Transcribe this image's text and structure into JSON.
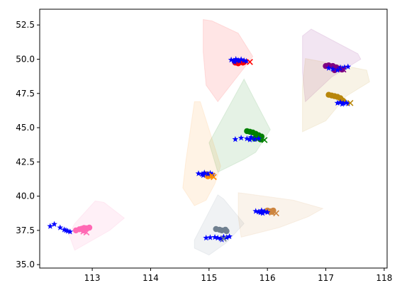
{
  "chart_data": {
    "type": "scatter",
    "title": "",
    "xlabel": "",
    "ylabel": "",
    "xlim": [
      112.1,
      118.05
    ],
    "ylim": [
      34.75,
      53.65
    ],
    "grid": false,
    "legend": "none",
    "x_ticks": [
      113,
      114,
      115,
      116,
      117,
      118
    ],
    "y_ticks": [
      35.0,
      37.5,
      40.0,
      42.5,
      45.0,
      47.5,
      50.0,
      52.5
    ],
    "clusters": [
      {
        "id": "red",
        "color": "#ff0000",
        "hull": [
          [
            114.9,
            52.9
          ],
          [
            115.05,
            52.8
          ],
          [
            115.5,
            51.9
          ],
          [
            115.75,
            50.2
          ],
          [
            115.6,
            49.35
          ],
          [
            115.15,
            46.9
          ],
          [
            114.95,
            48.1
          ],
          [
            114.9,
            50.5
          ]
        ],
        "circles": [
          [
            115.45,
            49.75
          ],
          [
            115.48,
            49.78
          ],
          [
            115.52,
            49.8
          ],
          [
            115.55,
            49.82
          ],
          [
            115.58,
            49.75
          ],
          [
            115.5,
            49.7
          ],
          [
            115.6,
            49.8
          ]
        ],
        "stars": [
          [
            115.38,
            49.95
          ],
          [
            115.42,
            49.88
          ],
          [
            115.46,
            50.0
          ],
          [
            115.5,
            49.92
          ],
          [
            115.55,
            49.98
          ],
          [
            115.6,
            49.9
          ],
          [
            115.64,
            49.85
          ],
          [
            115.44,
            49.8
          ],
          [
            115.52,
            49.86
          ]
        ],
        "x_marks": [
          [
            115.7,
            49.8
          ]
        ]
      },
      {
        "id": "purple",
        "color": "#800080",
        "hull": [
          [
            116.6,
            51.7
          ],
          [
            116.75,
            52.2
          ],
          [
            117.55,
            50.4
          ],
          [
            117.6,
            50.0
          ],
          [
            117.1,
            48.7
          ],
          [
            116.65,
            46.9
          ],
          [
            116.6,
            49.0
          ]
        ],
        "circles": [
          [
            117.0,
            49.5
          ],
          [
            117.05,
            49.55
          ],
          [
            117.12,
            49.5
          ],
          [
            117.18,
            49.4
          ],
          [
            117.22,
            49.3
          ],
          [
            117.28,
            49.25
          ],
          [
            117.15,
            49.2
          ]
        ],
        "stars": [
          [
            117.05,
            49.35
          ],
          [
            117.12,
            49.28
          ],
          [
            117.2,
            49.2
          ],
          [
            117.28,
            49.32
          ],
          [
            117.32,
            49.4
          ],
          [
            117.38,
            49.45
          ],
          [
            117.25,
            49.38
          ]
        ],
        "x_marks": [
          [
            117.3,
            49.25
          ]
        ]
      },
      {
        "id": "olive",
        "color": "#b8860b",
        "hull": [
          [
            116.65,
            50.05
          ],
          [
            117.4,
            49.45
          ],
          [
            117.7,
            49.2
          ],
          [
            117.75,
            48.35
          ],
          [
            117.35,
            47.3
          ],
          [
            117.0,
            45.5
          ],
          [
            116.6,
            44.7
          ],
          [
            116.6,
            48.0
          ]
        ],
        "circles": [
          [
            117.05,
            47.4
          ],
          [
            117.1,
            47.35
          ],
          [
            117.15,
            47.3
          ],
          [
            117.2,
            47.25
          ],
          [
            117.25,
            47.15
          ],
          [
            117.28,
            47.0
          ],
          [
            117.3,
            46.95
          ]
        ],
        "stars": [
          [
            117.2,
            46.8
          ],
          [
            117.25,
            46.85
          ],
          [
            117.3,
            46.78
          ],
          [
            117.35,
            46.82
          ],
          [
            117.38,
            46.75
          ],
          [
            117.28,
            46.72
          ]
        ],
        "x_marks": [
          [
            117.42,
            46.8
          ]
        ]
      },
      {
        "id": "green",
        "color": "#008000",
        "hull": [
          [
            115.6,
            48.55
          ],
          [
            115.75,
            47.3
          ],
          [
            116.05,
            44.85
          ],
          [
            115.8,
            43.2
          ],
          [
            115.6,
            42.7
          ],
          [
            115.15,
            41.75
          ],
          [
            115.0,
            43.9
          ]
        ],
        "circles": [
          [
            115.65,
            44.75
          ],
          [
            115.7,
            44.7
          ],
          [
            115.75,
            44.65
          ],
          [
            115.8,
            44.55
          ],
          [
            115.85,
            44.45
          ],
          [
            115.9,
            44.35
          ],
          [
            115.88,
            44.15
          ],
          [
            115.78,
            44.2
          ]
        ],
        "stars": [
          [
            115.45,
            44.15
          ],
          [
            115.55,
            44.25
          ],
          [
            115.65,
            44.2
          ],
          [
            115.72,
            44.3
          ],
          [
            115.78,
            44.15
          ],
          [
            115.85,
            44.2
          ],
          [
            115.7,
            44.12
          ]
        ],
        "x_marks": [
          [
            115.95,
            44.1
          ]
        ]
      },
      {
        "id": "orange",
        "color": "#ff8c00",
        "hull": [
          [
            114.75,
            46.9
          ],
          [
            114.85,
            46.9
          ],
          [
            115.2,
            42.2
          ],
          [
            115.1,
            40.9
          ],
          [
            114.95,
            39.7
          ],
          [
            114.75,
            39.3
          ],
          [
            114.55,
            40.6
          ],
          [
            114.6,
            42.5
          ]
        ],
        "circles": [
          [
            114.95,
            41.6
          ],
          [
            115.0,
            41.55
          ],
          [
            115.02,
            41.5
          ],
          [
            114.98,
            41.45
          ]
        ],
        "stars": [
          [
            114.82,
            41.65
          ],
          [
            114.88,
            41.6
          ],
          [
            114.92,
            41.7
          ],
          [
            114.98,
            41.62
          ],
          [
            115.02,
            41.68
          ],
          [
            115.06,
            41.58
          ],
          [
            114.9,
            41.52
          ]
        ],
        "x_marks": [
          [
            115.05,
            41.5
          ],
          [
            115.08,
            41.4
          ]
        ]
      },
      {
        "id": "gray",
        "color": "#708090",
        "hull": [
          [
            115.15,
            40.1
          ],
          [
            115.25,
            39.8
          ],
          [
            115.6,
            38.0
          ],
          [
            115.3,
            36.6
          ],
          [
            115.0,
            35.7
          ],
          [
            114.75,
            36.2
          ],
          [
            114.75,
            36.8
          ]
        ],
        "circles": [
          [
            115.12,
            37.6
          ],
          [
            115.18,
            37.55
          ],
          [
            115.22,
            37.5
          ],
          [
            115.28,
            37.55
          ],
          [
            115.3,
            37.45
          ]
        ],
        "stars": [
          [
            114.95,
            36.95
          ],
          [
            115.02,
            36.98
          ],
          [
            115.1,
            37.0
          ],
          [
            115.15,
            36.95
          ],
          [
            115.2,
            36.9
          ],
          [
            115.25,
            37.02
          ],
          [
            115.3,
            36.98
          ],
          [
            115.35,
            37.05
          ],
          [
            115.22,
            36.82
          ]
        ],
        "x_marks": [
          [
            115.25,
            36.9
          ]
        ]
      },
      {
        "id": "peru",
        "color": "#cd853f",
        "hull": [
          [
            115.5,
            40.25
          ],
          [
            115.6,
            40.2
          ],
          [
            116.45,
            39.7
          ],
          [
            116.95,
            39.1
          ],
          [
            116.7,
            38.5
          ],
          [
            116.2,
            37.7
          ],
          [
            115.55,
            37.0
          ],
          [
            115.5,
            38.5
          ]
        ],
        "circles": [
          [
            116.0,
            38.95
          ],
          [
            116.05,
            38.9
          ],
          [
            116.08,
            38.85
          ],
          [
            116.1,
            38.95
          ]
        ],
        "stars": [
          [
            115.8,
            38.9
          ],
          [
            115.85,
            38.85
          ],
          [
            115.9,
            38.95
          ],
          [
            115.95,
            38.88
          ],
          [
            116.0,
            38.82
          ],
          [
            115.92,
            38.75
          ],
          [
            115.88,
            38.8
          ]
        ],
        "x_marks": [
          [
            116.08,
            38.8
          ],
          [
            116.15,
            38.75
          ]
        ]
      },
      {
        "id": "pink",
        "color": "#ff69b4",
        "hull": [
          [
            113.05,
            39.65
          ],
          [
            113.2,
            39.55
          ],
          [
            113.55,
            38.4
          ],
          [
            113.3,
            37.5
          ],
          [
            112.7,
            36.05
          ],
          [
            112.6,
            37.2
          ],
          [
            112.7,
            38.0
          ]
        ],
        "circles": [
          [
            112.72,
            37.5
          ],
          [
            112.78,
            37.58
          ],
          [
            112.82,
            37.62
          ],
          [
            112.86,
            37.68
          ],
          [
            112.9,
            37.65
          ],
          [
            112.95,
            37.7
          ],
          [
            112.85,
            37.5
          ]
        ],
        "stars": [
          [
            112.28,
            37.8
          ],
          [
            112.35,
            37.95
          ],
          [
            112.45,
            37.7
          ],
          [
            112.52,
            37.55
          ],
          [
            112.58,
            37.45
          ],
          [
            112.62,
            37.4
          ],
          [
            112.55,
            37.5
          ]
        ],
        "x_marks": [
          [
            112.85,
            37.42
          ],
          [
            112.9,
            37.35
          ]
        ]
      }
    ]
  }
}
